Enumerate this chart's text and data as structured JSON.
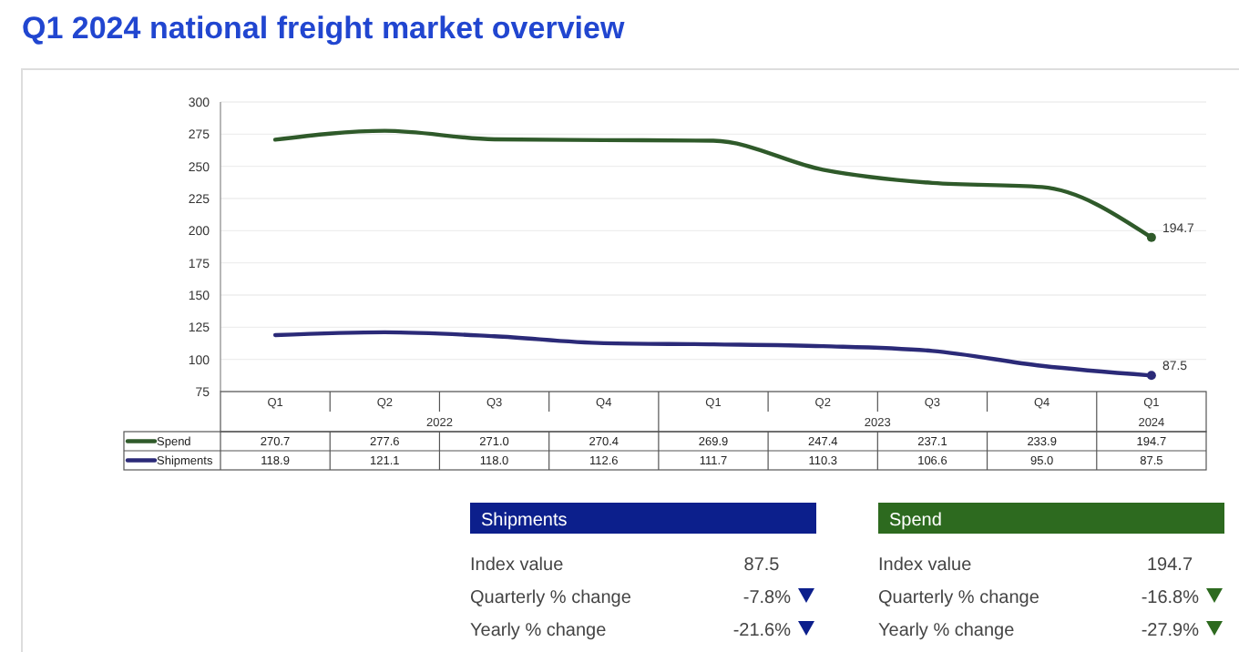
{
  "chart_data": [
    {
      "type": "line",
      "title": "Q1 2024 national freight market overview",
      "categories": [
        "Q1",
        "Q2",
        "Q3",
        "Q4",
        "Q1",
        "Q2",
        "Q3",
        "Q4",
        "Q1"
      ],
      "annotations": [
        "2022",
        "2023",
        "2024"
      ],
      "series": [
        {
          "name": "Spend",
          "color": "#2f5a2a",
          "values": [
            270.7,
            277.6,
            271.0,
            270.4,
            269.9,
            247.4,
            237.1,
            233.9,
            194.7
          ],
          "value_labels": [
            "270.7",
            "277.6",
            "271.0",
            "270.4",
            "269.9",
            "247.4",
            "237.1",
            "233.9",
            "194.7"
          ]
        },
        {
          "name": "Shipments",
          "color": "#2b2a78",
          "values": [
            118.9,
            121.1,
            118.0,
            112.6,
            111.7,
            110.3,
            106.6,
            95.0,
            87.5
          ],
          "value_labels": [
            "118.9",
            "121.1",
            "118.0",
            "112.6",
            "111.7",
            "110.3",
            "106.6",
            "95.0",
            "87.5"
          ]
        }
      ],
      "ylim": [
        75,
        300
      ],
      "yticks": [
        75,
        100,
        125,
        150,
        175,
        200,
        225,
        250,
        275,
        300
      ],
      "grid": "y",
      "legend": "bottom"
    },
    {
      "type": "other",
      "title": "Shipments",
      "color": "#0c1f8c",
      "annotations": [
        "Index value",
        "87.5",
        "Quarterly % change",
        "-7.8%",
        "Yearly % change",
        "-21.6%"
      ]
    },
    {
      "type": "other",
      "title": "Spend",
      "color": "#2d6a1f",
      "annotations": [
        "Index value",
        "194.7",
        "Quarterly % change",
        "-16.8%",
        "Yearly % change",
        "-27.9%"
      ]
    }
  ]
}
